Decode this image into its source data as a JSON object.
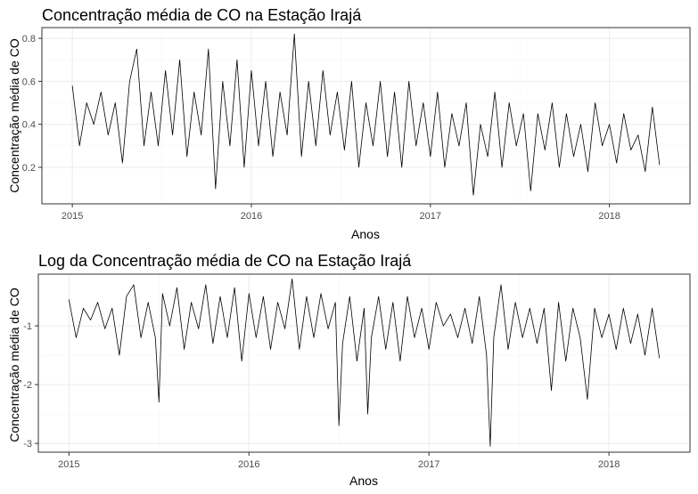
{
  "chart_data": [
    {
      "type": "line",
      "title": "Concentração média de CO na Estação Irajá",
      "xlabel": "Anos",
      "ylabel": "Concentração média de CO",
      "x_ticks": [
        "2015",
        "2016",
        "2017",
        "2018"
      ],
      "y_ticks": [
        "0.2",
        "0.4",
        "0.6",
        "0.8"
      ],
      "xlim": [
        2014.83,
        2018.45
      ],
      "ylim": [
        0.03,
        0.85
      ],
      "grid": true,
      "series": [
        {
          "x": [
            2015.0,
            2015.04,
            2015.08,
            2015.12,
            2015.16,
            2015.2,
            2015.24,
            2015.28,
            2015.32,
            2015.36,
            2015.4,
            2015.44,
            2015.48,
            2015.52,
            2015.56,
            2015.6,
            2015.64,
            2015.68,
            2015.72,
            2015.76,
            2015.8,
            2015.84,
            2015.88,
            2015.92,
            2015.96,
            2016.0,
            2016.04,
            2016.08,
            2016.12,
            2016.16,
            2016.2,
            2016.24,
            2016.28,
            2016.32,
            2016.36,
            2016.4,
            2016.44,
            2016.48,
            2016.52,
            2016.56,
            2016.6,
            2016.64,
            2016.68,
            2016.72,
            2016.76,
            2016.8,
            2016.84,
            2016.88,
            2016.92,
            2016.96,
            2017.0,
            2017.04,
            2017.08,
            2017.12,
            2017.16,
            2017.2,
            2017.24,
            2017.28,
            2017.32,
            2017.36,
            2017.4,
            2017.44,
            2017.48,
            2017.52,
            2017.56,
            2017.6,
            2017.64,
            2017.68,
            2017.72,
            2017.76,
            2017.8,
            2017.84,
            2017.88,
            2017.92,
            2017.96,
            2018.0,
            2018.04,
            2018.08,
            2018.12,
            2018.16,
            2018.2,
            2018.24,
            2018.28
          ],
          "values": [
            0.58,
            0.3,
            0.5,
            0.4,
            0.55,
            0.35,
            0.5,
            0.22,
            0.6,
            0.75,
            0.3,
            0.55,
            0.3,
            0.65,
            0.35,
            0.7,
            0.25,
            0.55,
            0.35,
            0.75,
            0.1,
            0.6,
            0.3,
            0.7,
            0.2,
            0.65,
            0.3,
            0.6,
            0.25,
            0.55,
            0.35,
            0.82,
            0.25,
            0.6,
            0.3,
            0.65,
            0.35,
            0.55,
            0.28,
            0.6,
            0.2,
            0.5,
            0.3,
            0.6,
            0.25,
            0.55,
            0.2,
            0.6,
            0.3,
            0.5,
            0.25,
            0.55,
            0.2,
            0.45,
            0.3,
            0.5,
            0.07,
            0.4,
            0.25,
            0.55,
            0.2,
            0.5,
            0.3,
            0.45,
            0.09,
            0.45,
            0.28,
            0.5,
            0.2,
            0.45,
            0.25,
            0.4,
            0.18,
            0.5,
            0.3,
            0.4,
            0.22,
            0.45,
            0.28,
            0.35,
            0.18,
            0.48,
            0.21
          ]
        }
      ]
    },
    {
      "type": "line",
      "title": "Log da Concentração média de CO na Estação Irajá",
      "xlabel": "Anos",
      "ylabel": "Concentração média de CO",
      "x_ticks": [
        "2015",
        "2016",
        "2017",
        "2018"
      ],
      "y_ticks": [
        "-3",
        "-2",
        "-1"
      ],
      "xlim": [
        2014.83,
        2018.45
      ],
      "ylim": [
        -3.15,
        -0.12
      ],
      "grid": true,
      "series": [
        {
          "x": [
            2015.0,
            2015.04,
            2015.08,
            2015.12,
            2015.16,
            2015.2,
            2015.24,
            2015.28,
            2015.32,
            2015.36,
            2015.4,
            2015.44,
            2015.48,
            2015.5,
            2015.52,
            2015.56,
            2015.6,
            2015.64,
            2015.68,
            2015.72,
            2015.76,
            2015.8,
            2015.84,
            2015.88,
            2015.92,
            2015.96,
            2016.0,
            2016.04,
            2016.08,
            2016.12,
            2016.16,
            2016.2,
            2016.24,
            2016.28,
            2016.32,
            2016.36,
            2016.4,
            2016.44,
            2016.48,
            2016.5,
            2016.52,
            2016.56,
            2016.6,
            2016.64,
            2016.66,
            2016.68,
            2016.72,
            2016.76,
            2016.8,
            2016.84,
            2016.88,
            2016.92,
            2016.96,
            2017.0,
            2017.04,
            2017.08,
            2017.12,
            2017.16,
            2017.2,
            2017.24,
            2017.28,
            2017.32,
            2017.34,
            2017.36,
            2017.4,
            2017.44,
            2017.48,
            2017.52,
            2017.56,
            2017.6,
            2017.64,
            2017.68,
            2017.72,
            2017.76,
            2017.8,
            2017.84,
            2017.88,
            2017.92,
            2017.96,
            2018.0,
            2018.04,
            2018.08,
            2018.12,
            2018.16,
            2018.2,
            2018.24,
            2018.28
          ],
          "values": [
            -0.55,
            -1.2,
            -0.7,
            -0.9,
            -0.6,
            -1.05,
            -0.7,
            -1.5,
            -0.5,
            -0.3,
            -1.2,
            -0.6,
            -1.2,
            -2.3,
            -0.45,
            -1.0,
            -0.35,
            -1.4,
            -0.6,
            -1.05,
            -0.3,
            -1.3,
            -0.5,
            -1.2,
            -0.35,
            -1.6,
            -0.45,
            -1.2,
            -0.5,
            -1.4,
            -0.6,
            -1.05,
            -0.2,
            -1.4,
            -0.5,
            -1.2,
            -0.45,
            -1.05,
            -0.6,
            -2.7,
            -1.3,
            -0.5,
            -1.6,
            -0.7,
            -2.5,
            -1.2,
            -0.5,
            -1.4,
            -0.6,
            -1.6,
            -0.5,
            -1.2,
            -0.7,
            -1.4,
            -0.6,
            -1.0,
            -0.8,
            -1.2,
            -0.7,
            -1.3,
            -0.5,
            -1.5,
            -3.05,
            -1.2,
            -0.3,
            -1.4,
            -0.6,
            -1.2,
            -0.7,
            -1.3,
            -0.7,
            -2.1,
            -0.6,
            -1.6,
            -0.7,
            -1.2,
            -2.25,
            -0.7,
            -1.2,
            -0.8,
            -1.4,
            -0.7,
            -1.3,
            -0.8,
            -1.5,
            -0.7,
            -1.55
          ]
        }
      ]
    }
  ]
}
